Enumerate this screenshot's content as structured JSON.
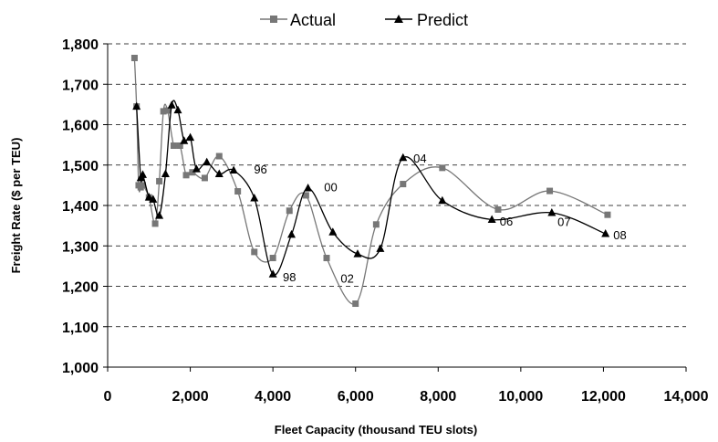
{
  "chart_data": {
    "type": "line",
    "xlabel": "Fleet Capacity (thousand TEU slots)",
    "ylabel": "Freight Rate ($ per TEU)",
    "xlim": [
      0,
      14000
    ],
    "ylim": [
      1000,
      1800
    ],
    "x_ticks": [
      0,
      2000,
      4000,
      6000,
      8000,
      10000,
      12000,
      14000
    ],
    "x_tick_labels": [
      "0",
      "2,000",
      "4,000",
      "6,000",
      "8,000",
      "10,000",
      "12,000",
      "14,000"
    ],
    "y_ticks": [
      1000,
      1100,
      1200,
      1300,
      1400,
      1500,
      1600,
      1700,
      1800
    ],
    "y_tick_labels": [
      "1,000",
      "1,100",
      "1,200",
      "1,300",
      "1,400",
      "1,500",
      "1,600",
      "1,700",
      "1,800"
    ],
    "grid": "horizontal dashed",
    "legend": "top-center",
    "series": [
      {
        "name": "Actual",
        "marker": "square",
        "color": "#777777",
        "points": [
          [
            650,
            1765
          ],
          [
            700,
            1645
          ],
          [
            750,
            1450
          ],
          [
            800,
            1445
          ],
          [
            850,
            1450
          ],
          [
            1000,
            1420
          ],
          [
            1150,
            1355
          ],
          [
            1250,
            1460
          ],
          [
            1350,
            1633
          ],
          [
            1450,
            1635
          ],
          [
            1600,
            1548
          ],
          [
            1750,
            1548
          ],
          [
            1900,
            1475
          ],
          [
            2050,
            1482
          ],
          [
            2350,
            1468
          ],
          [
            2700,
            1522
          ],
          [
            3150,
            1435
          ],
          [
            3550,
            1285
          ],
          [
            4000,
            1270
          ],
          [
            4400,
            1387
          ],
          [
            4800,
            1425
          ],
          [
            5300,
            1270
          ],
          [
            6000,
            1157
          ],
          [
            6500,
            1353
          ],
          [
            7150,
            1453
          ],
          [
            8100,
            1493
          ],
          [
            9450,
            1390
          ],
          [
            10700,
            1436
          ],
          [
            12100,
            1377
          ]
        ]
      },
      {
        "name": "Predict",
        "marker": "triangle",
        "color": "#000000",
        "points": [
          [
            700,
            1645
          ],
          [
            800,
            1468
          ],
          [
            850,
            1476
          ],
          [
            1000,
            1420
          ],
          [
            1100,
            1415
          ],
          [
            1250,
            1375
          ],
          [
            1400,
            1478
          ],
          [
            1550,
            1648
          ],
          [
            1700,
            1636
          ],
          [
            1850,
            1560
          ],
          [
            2000,
            1568
          ],
          [
            2150,
            1490
          ],
          [
            2400,
            1507
          ],
          [
            2700,
            1478
          ],
          [
            3050,
            1487
          ],
          [
            3550,
            1418
          ],
          [
            4000,
            1230
          ],
          [
            4450,
            1328
          ],
          [
            4850,
            1443
          ],
          [
            5450,
            1334
          ],
          [
            6050,
            1280
          ],
          [
            6600,
            1293
          ],
          [
            7150,
            1518
          ],
          [
            8100,
            1412
          ],
          [
            9300,
            1365
          ],
          [
            10750,
            1382
          ],
          [
            12050,
            1330
          ]
        ]
      }
    ],
    "annotations": [
      {
        "text": "96",
        "x": 3700,
        "y": 1490
      },
      {
        "text": "98",
        "x": 4400,
        "y": 1224
      },
      {
        "text": "00",
        "x": 5400,
        "y": 1446
      },
      {
        "text": "02",
        "x": 5800,
        "y": 1220
      },
      {
        "text": "04",
        "x": 7560,
        "y": 1518
      },
      {
        "text": "06",
        "x": 9650,
        "y": 1362
      },
      {
        "text": "07",
        "x": 11050,
        "y": 1360
      },
      {
        "text": "08",
        "x": 12400,
        "y": 1328
      }
    ]
  }
}
